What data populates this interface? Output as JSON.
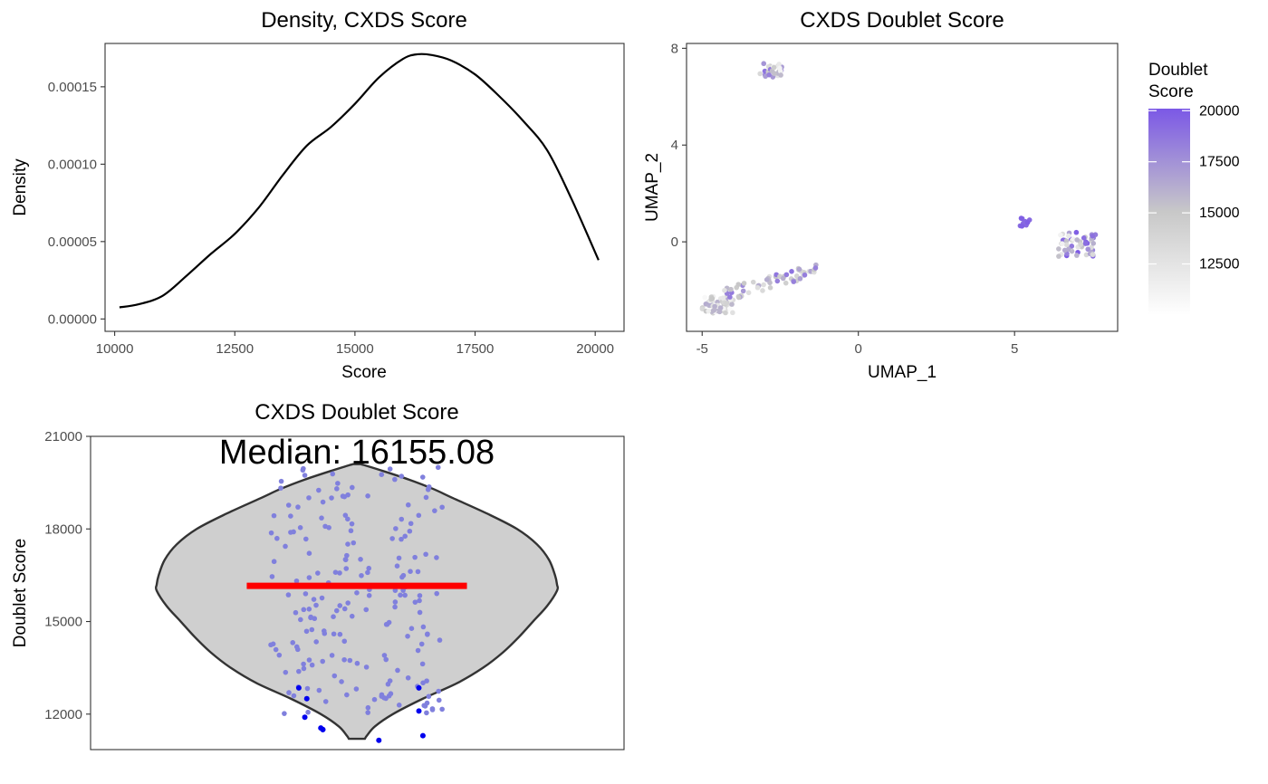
{
  "chart_data": [
    {
      "type": "line",
      "title": "Density, CXDS Score",
      "xlabel": "Score",
      "ylabel": "Density",
      "xlim": [
        9800,
        20600
      ],
      "ylim": [
        -8e-06,
        0.000178
      ],
      "xticks": [
        "10000",
        "12500",
        "15000",
        "17500",
        "20000"
      ],
      "yticks": [
        "0.00000",
        "0.00005",
        "0.00010",
        "0.00015"
      ],
      "x": [
        10100,
        10500,
        11000,
        11500,
        12000,
        12500,
        13000,
        13500,
        14000,
        14500,
        15000,
        15500,
        16000,
        16300,
        16600,
        17000,
        17500,
        18000,
        18500,
        19000,
        19500,
        20070
      ],
      "y": [
        7.5e-06,
        9.5e-06,
        1.5e-05,
        2.8e-05,
        4.2e-05,
        5.5e-05,
        7.2e-05,
        9.3e-05,
        0.000112,
        0.000124,
        0.000139,
        0.000156,
        0.000168,
        0.000171,
        0.0001705,
        0.000167,
        0.000158,
        0.000144,
        0.000128,
        0.000109,
        7.8e-05,
        3.8e-05
      ],
      "grid": false
    },
    {
      "type": "scatter",
      "title": "CXDS Doublet Score",
      "xlabel": "UMAP_1",
      "ylabel": "UMAP_2",
      "xlim": [
        -5.5,
        8.3
      ],
      "ylim": [
        -3.7,
        8.2
      ],
      "xticks": [
        "-5",
        "0",
        "5"
      ],
      "yticks": [
        "0",
        "4",
        "8"
      ],
      "legend": {
        "title": "Doublet Score",
        "position": "right",
        "ticks": [
          "12500",
          "15000",
          "17500",
          "20000"
        ],
        "range": [
          10000,
          20100
        ],
        "colors": [
          "#ffffff",
          "#c8c8c8",
          "#7b58e6"
        ]
      },
      "clusters": [
        {
          "center": [
            -2.8,
            7.1
          ],
          "spread": [
            0.35,
            0.35
          ],
          "n": 30,
          "score_range": [
            11000,
            20000
          ]
        },
        {
          "center": [
            -4.5,
            -2.6
          ],
          "spread": [
            0.5,
            0.35
          ],
          "n": 55,
          "score_range": [
            10100,
            16500
          ]
        },
        {
          "center": [
            -2.8,
            -1.7
          ],
          "spread": [
            1.5,
            0.55
          ],
          "n": 60,
          "score_range": [
            12500,
            19000
          ]
        },
        {
          "center": [
            5.3,
            0.8
          ],
          "spread": [
            0.18,
            0.2
          ],
          "n": 9,
          "score_range": [
            19000,
            20100
          ]
        },
        {
          "center": [
            7.0,
            -0.1
          ],
          "spread": [
            0.6,
            0.5
          ],
          "n": 55,
          "score_range": [
            11000,
            20100
          ]
        }
      ],
      "grid": false
    },
    {
      "type": "violin",
      "title": "CXDS Doublet Score",
      "annotation": "Median: 16155.08",
      "ylabel": "Doublet Score",
      "ylim": [
        10850,
        21000
      ],
      "yticks": [
        "12000",
        "15000",
        "18000",
        "21000"
      ],
      "median": 16155.08,
      "min": 11200,
      "max": 20100,
      "violin_profile": {
        "y": [
          11200,
          11300,
          11600,
          12000,
          12500,
          13000,
          13500,
          14000,
          14500,
          15000,
          15500,
          16000,
          16200,
          16500,
          17000,
          17500,
          18000,
          18500,
          19000,
          19300,
          19600,
          19900,
          20100
        ],
        "half_width": [
          0.04,
          0.05,
          0.09,
          0.18,
          0.33,
          0.5,
          0.63,
          0.73,
          0.81,
          0.88,
          0.95,
          1.0,
          1.0,
          0.99,
          0.96,
          0.9,
          0.8,
          0.65,
          0.48,
          0.38,
          0.26,
          0.12,
          0.02
        ]
      },
      "points_inside": 200,
      "outliers": [
        {
          "x": -0.29,
          "y": 12850
        },
        {
          "x": -0.25,
          "y": 12500
        },
        {
          "x": -0.26,
          "y": 11900
        },
        {
          "x": -0.18,
          "y": 11550
        },
        {
          "x": -0.17,
          "y": 11500
        },
        {
          "x": 0.11,
          "y": 11150
        },
        {
          "x": 0.31,
          "y": 12850
        },
        {
          "x": 0.31,
          "y": 12100
        },
        {
          "x": 0.33,
          "y": 11300
        },
        {
          "x": -0.17,
          "y": 11500
        }
      ],
      "colors": {
        "violin_fill": "#cfcfcf",
        "points": "#8080dd",
        "outliers": "#0000ee",
        "median_line": "#ff0000"
      },
      "grid": false
    }
  ]
}
